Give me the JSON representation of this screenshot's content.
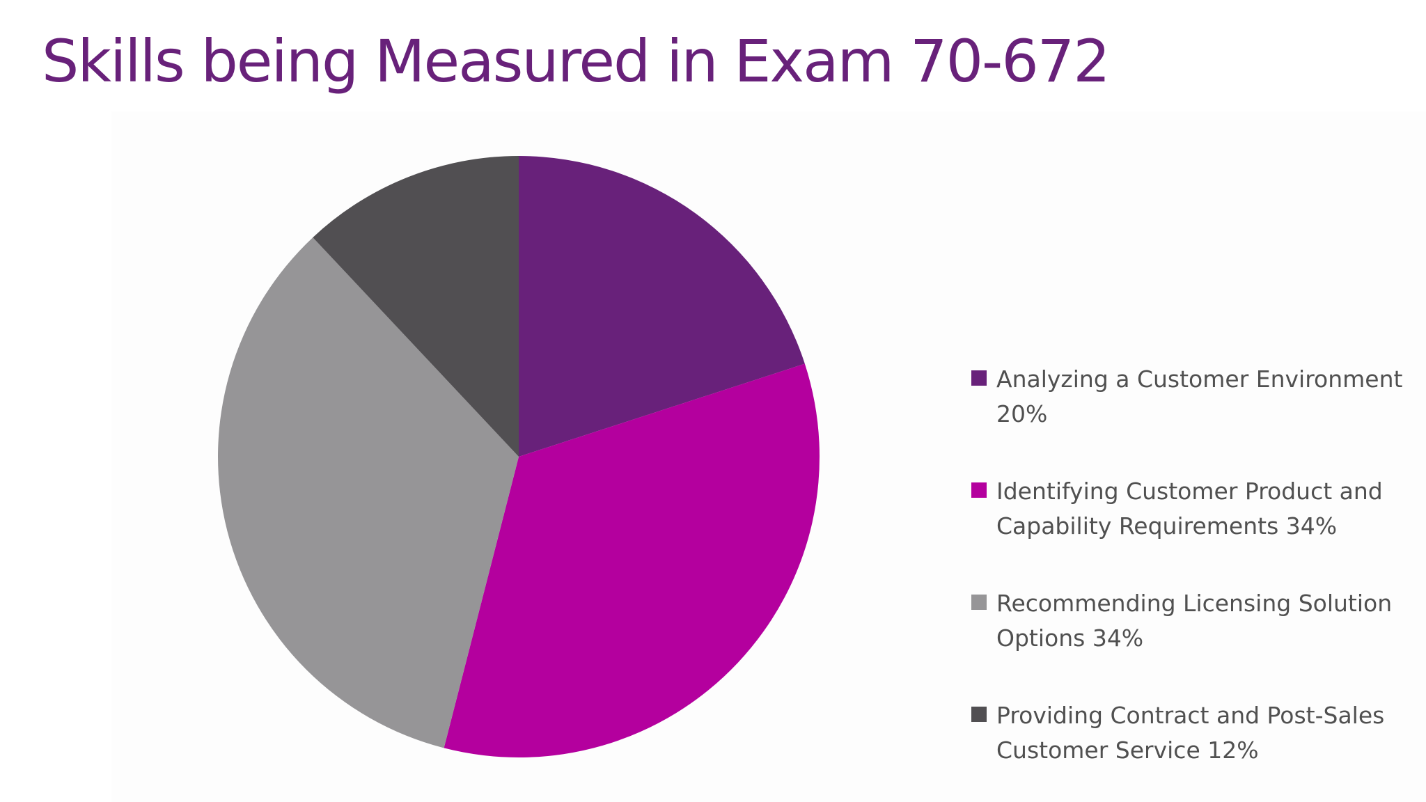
{
  "title": "Skills being Measured in Exam 70-672",
  "title_color": "#68217A",
  "chart_data": {
    "type": "pie",
    "title": "",
    "legend_position": "right",
    "start_angle_deg": 0,
    "direction": "clockwise",
    "slices": [
      {
        "label": "Analyzing a Customer Environment\n20%",
        "value": 20,
        "color": "#68217A"
      },
      {
        "label": "Identifying Customer Product and\nCapability Requirements 34%",
        "value": 34,
        "color": "#B4009E"
      },
      {
        "label": "Recommending Licensing Solution\nOptions 34%",
        "value": 34,
        "color": "#969597"
      },
      {
        "label": "Providing Contract and Post-Sales\nCustomer Service 12%",
        "value": 12,
        "color": "#514F52"
      }
    ]
  }
}
